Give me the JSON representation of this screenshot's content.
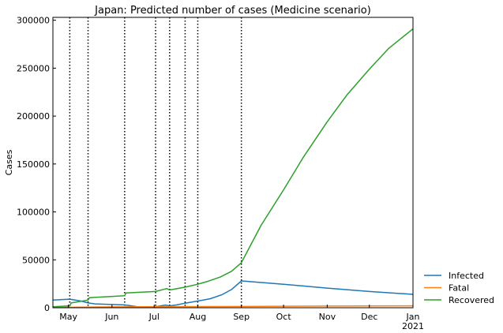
{
  "chart_data": {
    "type": "line",
    "title": "Japan: Predicted number of cases (Medicine scenario)",
    "xlabel": "",
    "ylabel": "Cases",
    "x_axis": "date",
    "xlim": [
      "2020-04-20",
      "2021-01-01"
    ],
    "ylim": [
      0,
      303000
    ],
    "grid": false,
    "legend_position": "outside-bottom-right",
    "x_ticks": [
      {
        "date": "2020-05-01",
        "label": "May"
      },
      {
        "date": "2020-06-01",
        "label": "Jun"
      },
      {
        "date": "2020-07-01",
        "label": "Jul"
      },
      {
        "date": "2020-08-01",
        "label": "Aug"
      },
      {
        "date": "2020-09-01",
        "label": "Sep"
      },
      {
        "date": "2020-10-01",
        "label": "Oct"
      },
      {
        "date": "2020-11-01",
        "label": "Nov"
      },
      {
        "date": "2020-12-01",
        "label": "Dec"
      },
      {
        "date": "2021-01-01",
        "label": "Jan"
      }
    ],
    "x_year_label": {
      "date": "2021-01-01",
      "label": "2021"
    },
    "y_ticks": [
      0,
      50000,
      100000,
      150000,
      200000,
      250000,
      300000
    ],
    "phase_change_dates": [
      "2020-05-02",
      "2020-05-15",
      "2020-06-10",
      "2020-07-02",
      "2020-07-12",
      "2020-07-23",
      "2020-08-01",
      "2020-09-01"
    ],
    "series": [
      {
        "name": "Infected",
        "color": "#1f77b4",
        "points": [
          [
            "2020-04-20",
            8000
          ],
          [
            "2020-05-02",
            9000
          ],
          [
            "2020-05-10",
            7000
          ],
          [
            "2020-05-15",
            5000
          ],
          [
            "2020-05-20",
            4000
          ],
          [
            "2020-06-10",
            3000
          ],
          [
            "2020-06-20",
            800
          ],
          [
            "2020-07-02",
            1000
          ],
          [
            "2020-07-09",
            2800
          ],
          [
            "2020-07-12",
            2000
          ],
          [
            "2020-07-17",
            3000
          ],
          [
            "2020-07-23",
            4800
          ],
          [
            "2020-08-01",
            7000
          ],
          [
            "2020-08-10",
            9500
          ],
          [
            "2020-08-18",
            13500
          ],
          [
            "2020-08-25",
            19000
          ],
          [
            "2020-09-01",
            28000
          ],
          [
            "2020-10-01",
            24500
          ],
          [
            "2020-11-01",
            20500
          ],
          [
            "2020-12-01",
            17000
          ],
          [
            "2021-01-01",
            14000
          ]
        ]
      },
      {
        "name": "Fatal",
        "color": "#ff7f0e",
        "points": [
          [
            "2020-04-20",
            300
          ],
          [
            "2020-06-01",
            900
          ],
          [
            "2020-09-01",
            1300
          ],
          [
            "2020-11-01",
            1700
          ],
          [
            "2021-01-01",
            2000
          ]
        ]
      },
      {
        "name": "Recovered",
        "color": "#2ca02c",
        "points": [
          [
            "2020-04-20",
            1000
          ],
          [
            "2020-05-02",
            2000
          ],
          [
            "2020-05-03",
            5000
          ],
          [
            "2020-05-15",
            8000
          ],
          [
            "2020-05-16",
            10500
          ],
          [
            "2020-06-10",
            12500
          ],
          [
            "2020-06-11",
            15500
          ],
          [
            "2020-07-02",
            17000
          ],
          [
            "2020-07-10",
            20000
          ],
          [
            "2020-07-12",
            18500
          ],
          [
            "2020-07-23",
            21500
          ],
          [
            "2020-08-01",
            24500
          ],
          [
            "2020-08-08",
            27500
          ],
          [
            "2020-08-17",
            32000
          ],
          [
            "2020-08-25",
            38000
          ],
          [
            "2020-09-01",
            47000
          ],
          [
            "2020-09-15",
            86000
          ],
          [
            "2020-10-01",
            123000
          ],
          [
            "2020-10-15",
            157000
          ],
          [
            "2020-11-01",
            194000
          ],
          [
            "2020-11-15",
            222000
          ],
          [
            "2020-12-01",
            249000
          ],
          [
            "2020-12-15",
            271000
          ],
          [
            "2021-01-01",
            291000
          ]
        ]
      }
    ]
  }
}
